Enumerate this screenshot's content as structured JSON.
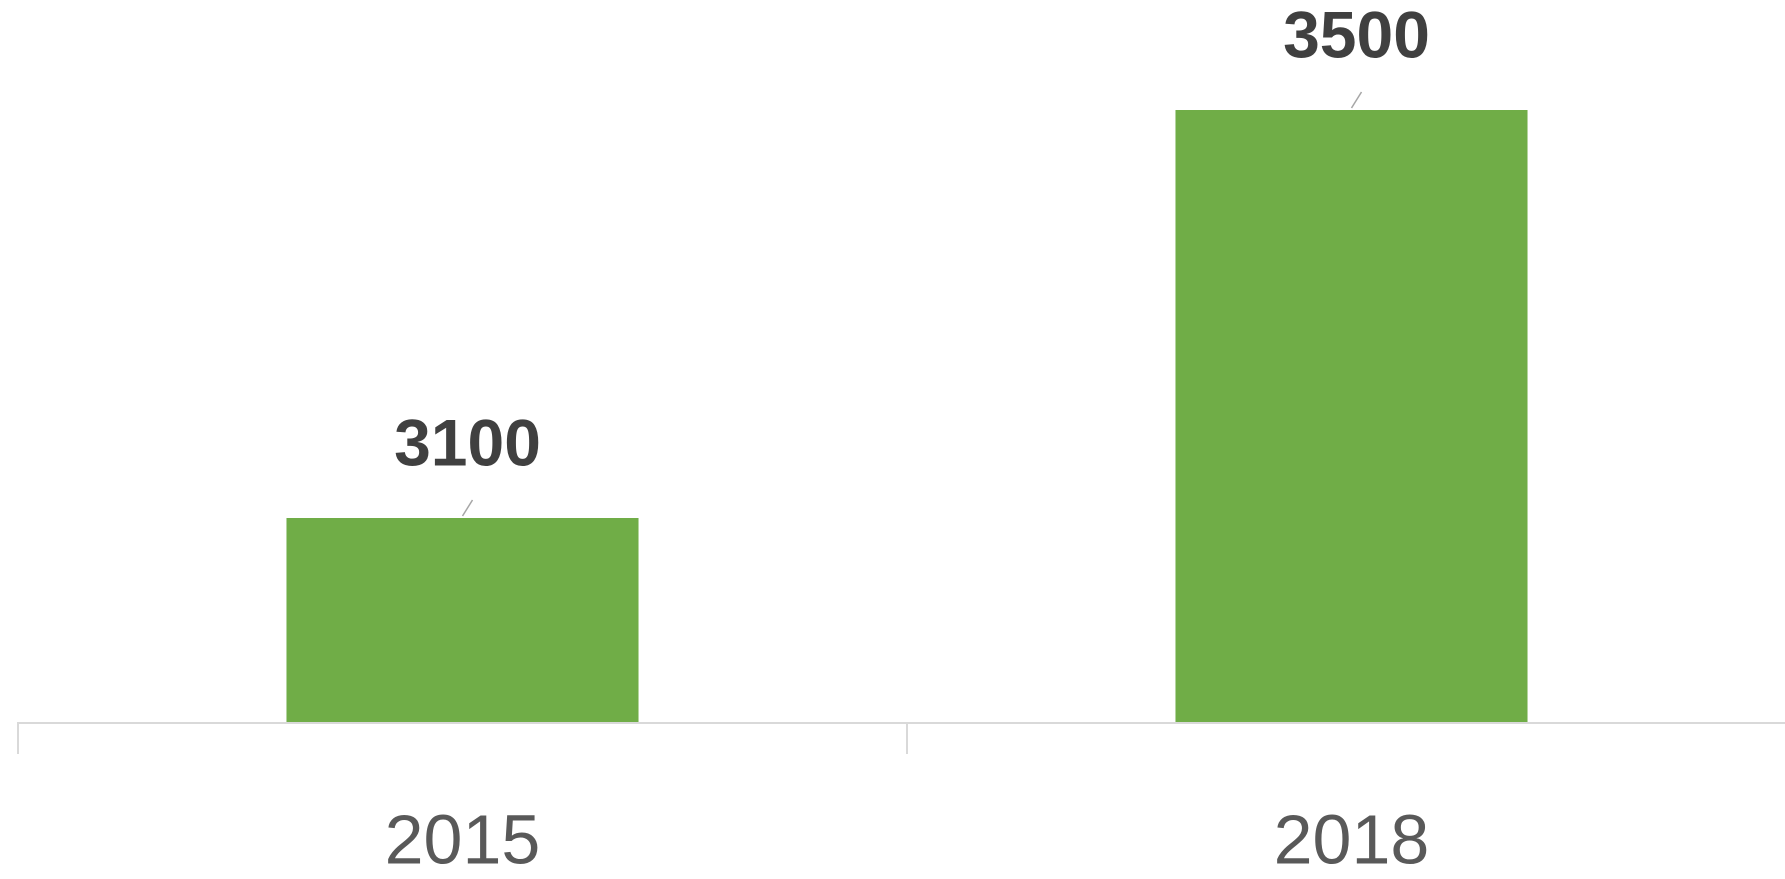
{
  "chart_data": {
    "type": "bar",
    "categories": [
      "2015",
      "2018"
    ],
    "values": [
      3100,
      3500
    ],
    "color": "#70ad47",
    "ylim": [
      2900,
      3600
    ],
    "data_labels": true
  }
}
